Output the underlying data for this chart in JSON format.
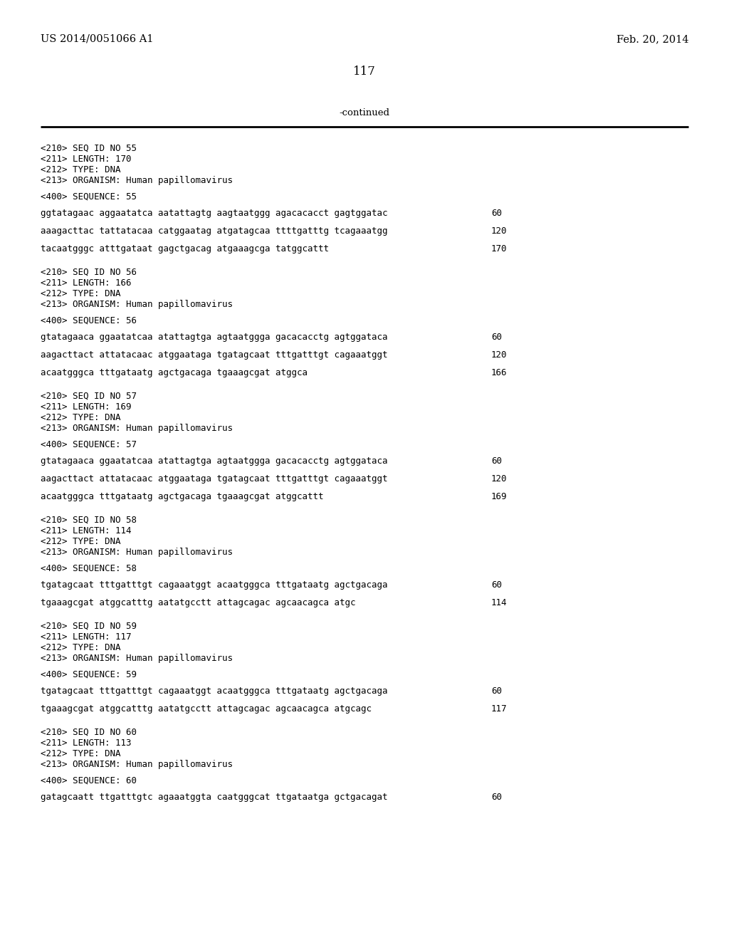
{
  "header_left": "US 2014/0051066 A1",
  "header_right": "Feb. 20, 2014",
  "page_number": "117",
  "continued_text": "-continued",
  "background_color": "#ffffff",
  "text_color": "#000000",
  "sections": [
    {
      "header": [
        "<210> SEQ ID NO 55",
        "<211> LENGTH: 170",
        "<212> TYPE: DNA",
        "<213> ORGANISM: Human papillomavirus"
      ],
      "label": "<400> SEQUENCE: 55",
      "sequences": [
        [
          "ggtatagaac aggaatatca aatattagtg aagtaatggg agacacacct gagtggatac",
          "60"
        ],
        [
          "aaagacttac tattatacaa catggaatag atgatagcaa ttttgatttg tcagaaatgg",
          "120"
        ],
        [
          "tacaatgggc atttgataat gagctgacag atgaaagcga tatggcattt",
          "170"
        ]
      ]
    },
    {
      "header": [
        "<210> SEQ ID NO 56",
        "<211> LENGTH: 166",
        "<212> TYPE: DNA",
        "<213> ORGANISM: Human papillomavirus"
      ],
      "label": "<400> SEQUENCE: 56",
      "sequences": [
        [
          "gtatagaaca ggaatatcaa atattagtga agtaatggga gacacacctg agtggataca",
          "60"
        ],
        [
          "aagacttact attatacaac atggaataga tgatagcaat tttgatttgt cagaaatggt",
          "120"
        ],
        [
          "acaatgggca tttgataatg agctgacaga tgaaagcgat atggca",
          "166"
        ]
      ]
    },
    {
      "header": [
        "<210> SEQ ID NO 57",
        "<211> LENGTH: 169",
        "<212> TYPE: DNA",
        "<213> ORGANISM: Human papillomavirus"
      ],
      "label": "<400> SEQUENCE: 57",
      "sequences": [
        [
          "gtatagaaca ggaatatcaa atattagtga agtaatggga gacacacctg agtggataca",
          "60"
        ],
        [
          "aagacttact attatacaac atggaataga tgatagcaat tttgatttgt cagaaatggt",
          "120"
        ],
        [
          "acaatgggca tttgataatg agctgacaga tgaaagcgat atggcattt",
          "169"
        ]
      ]
    },
    {
      "header": [
        "<210> SEQ ID NO 58",
        "<211> LENGTH: 114",
        "<212> TYPE: DNA",
        "<213> ORGANISM: Human papillomavirus"
      ],
      "label": "<400> SEQUENCE: 58",
      "sequences": [
        [
          "tgatagcaat tttgatttgt cagaaatggt acaatgggca tttgataatg agctgacaga",
          "60"
        ],
        [
          "tgaaagcgat atggcatttg aatatgcctt attagcagac agcaacagca atgc",
          "114"
        ]
      ]
    },
    {
      "header": [
        "<210> SEQ ID NO 59",
        "<211> LENGTH: 117",
        "<212> TYPE: DNA",
        "<213> ORGANISM: Human papillomavirus"
      ],
      "label": "<400> SEQUENCE: 59",
      "sequences": [
        [
          "tgatagcaat tttgatttgt cagaaatggt acaatgggca tttgataatg agctgacaga",
          "60"
        ],
        [
          "tgaaagcgat atggcatttg aatatgcctt attagcagac agcaacagca atgcagc",
          "117"
        ]
      ]
    },
    {
      "header": [
        "<210> SEQ ID NO 60",
        "<211> LENGTH: 113",
        "<212> TYPE: DNA",
        "<213> ORGANISM: Human papillomavirus"
      ],
      "label": "<400> SEQUENCE: 60",
      "sequences": [
        [
          "gatagcaatt ttgatttgtc agaaatggta caatgggcat ttgataatga gctgacagat",
          "60"
        ]
      ]
    }
  ]
}
